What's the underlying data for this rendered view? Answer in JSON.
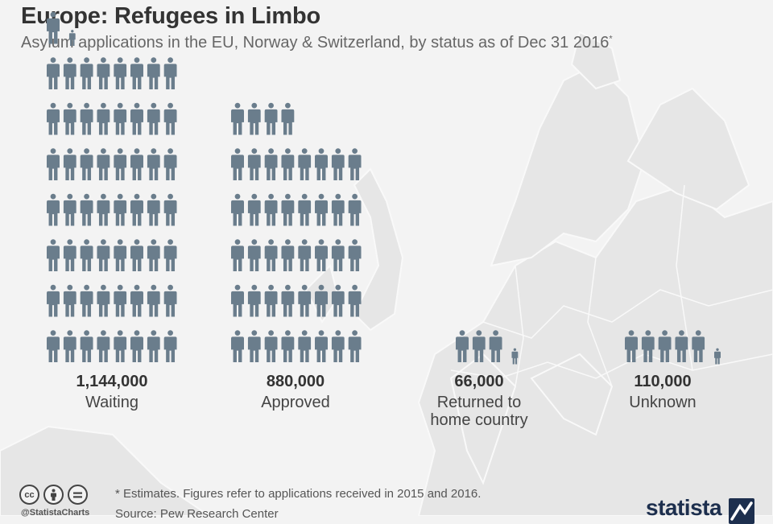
{
  "header": {
    "title": "Europe: Refugees in Limbo",
    "subtitle": "Asylum applications in the EU, Norway & Switzerland, by status as of Dec 31 2016",
    "subtitle_mark": "*"
  },
  "chart_data": {
    "type": "pictogram",
    "title": "Europe: Refugees in Limbo",
    "subtitle": "Asylum applications in the EU, Norway & Switzerland, by status as of Dec 31 2016*",
    "icon": "person-icon",
    "icon_color": "#6a7d8c",
    "categories": [
      "Waiting",
      "Approved",
      "Returned to home country",
      "Unknown"
    ],
    "series": [
      {
        "values": [
          1144000,
          880000,
          66000,
          110000
        ],
        "value_labels": [
          "1,144,000",
          "880,000",
          "66,000",
          "110,000"
        ],
        "labels": [
          "Waiting",
          "Approved",
          "Returned to\nhome country",
          "Unknown"
        ]
      }
    ]
  },
  "footer": {
    "note": "* Estimates. Figures refer to applications received in 2015 and 2016.",
    "source": "Source: Pew Research Center",
    "handle": "@StatistaCharts",
    "license_icons": [
      "cc-icon",
      "attribution-icon",
      "no-derivatives-icon"
    ],
    "brand": "statista"
  },
  "colors": {
    "figure": "#6a7d8c",
    "background": "#f3f3f3",
    "land": "#e6e6e6",
    "border": "#f9f9f9",
    "brand": "#1d2f4e"
  }
}
